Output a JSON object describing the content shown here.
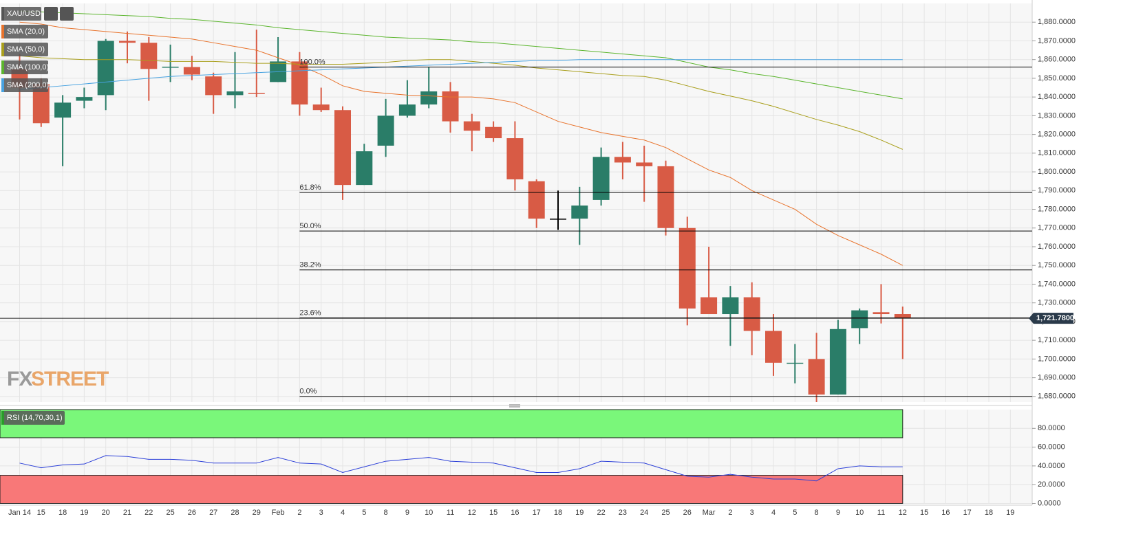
{
  "chart_data": [
    {
      "type": "candlestick",
      "title": "XAU/USD",
      "categories": [
        "Jan 14",
        "15",
        "18",
        "19",
        "20",
        "21",
        "22",
        "25",
        "26",
        "27",
        "28",
        "29",
        "Feb",
        "2",
        "3",
        "4",
        "5",
        "8",
        "9",
        "10",
        "11",
        "12",
        "15",
        "16",
        "17",
        "18",
        "19",
        "22",
        "23",
        "24",
        "25",
        "26",
        "Mar",
        "2",
        "3",
        "4",
        "5",
        "8",
        "9",
        "10",
        "11",
        "12",
        "15",
        "16",
        "17",
        "18",
        "19"
      ],
      "open": [
        1855,
        1847,
        1829,
        1838,
        1841,
        1870,
        1869,
        1856,
        1856,
        1851,
        1841,
        1842.2,
        1848,
        1859,
        1836,
        1833,
        1793,
        1814,
        1830,
        1836,
        1843,
        1827,
        1824,
        1818,
        1795,
        1775,
        1775,
        1785,
        1808,
        1805,
        1803,
        1770,
        1733,
        1724,
        1733,
        1715,
        1697.5,
        1700,
        1681,
        1716.5,
        1725,
        1724,
        null,
        null,
        null,
        null,
        null
      ],
      "high": [
        1863,
        1850,
        1841,
        1845,
        1871,
        1875,
        1872,
        1868,
        1862,
        1853,
        1864,
        1876,
        1872,
        1864,
        1845,
        1835,
        1815,
        1839,
        1849,
        1856,
        1848,
        1831,
        1827,
        1827,
        1796,
        1790,
        1792,
        1813,
        1816,
        1814,
        1806,
        1776,
        1760,
        1739,
        1741,
        1724,
        1708,
        1714,
        1721,
        1727,
        1740,
        1728,
        null,
        null,
        null,
        null,
        null
      ],
      "low": [
        1828,
        1824,
        1803,
        1834,
        1833,
        1858,
        1838,
        1848,
        1849,
        1831,
        1834,
        1840,
        1848,
        1830,
        1832,
        1785,
        1793,
        1808,
        1829,
        1834,
        1821,
        1811,
        1816,
        1790,
        1770,
        1769,
        1761,
        1782,
        1796,
        1784,
        1766,
        1718,
        1724,
        1707,
        1702,
        1691,
        1687,
        1677,
        1681,
        1708,
        1719,
        1700,
        null,
        null,
        null,
        null,
        null
      ],
      "close": [
        1845,
        1826,
        1837,
        1840,
        1870,
        1869,
        1855,
        1856.2,
        1852,
        1841,
        1843,
        1842,
        1859,
        1836,
        1833,
        1793,
        1811,
        1830,
        1836,
        1843,
        1827,
        1822,
        1818,
        1796,
        1775,
        1775,
        1782,
        1808,
        1805,
        1803,
        1770,
        1727,
        1724,
        1733,
        1715,
        1698,
        1698,
        1681,
        1716,
        1726,
        1724,
        1721.78,
        null,
        null,
        null,
        null,
        null
      ],
      "up_color": "#2a7d68",
      "down_color": "#d85b45",
      "flat_color": "#000000",
      "series": [
        {
          "name": "SMA (20,0)",
          "color": "#e8732c",
          "values": [
            1880,
            1879,
            1877,
            1876,
            1875,
            1874,
            1873,
            1872,
            1871,
            1869,
            1867,
            1865,
            1861,
            1857,
            1852,
            1846,
            1843,
            1842,
            1841,
            1840.6,
            1840,
            1840,
            1839,
            1837,
            1832,
            1827,
            1824,
            1821,
            1819,
            1817,
            1813,
            1807,
            1801,
            1797,
            1790,
            1785,
            1780,
            1772,
            1766,
            1761,
            1756,
            1750,
            null,
            null,
            null,
            null,
            null
          ]
        },
        {
          "name": "SMA (50,0)",
          "color": "#a99f1c",
          "values": [
            1862,
            1861,
            1860.5,
            1860,
            1860,
            1860,
            1859.5,
            1859,
            1859,
            1859,
            1858.5,
            1858,
            1858,
            1857.5,
            1857.5,
            1857.5,
            1858,
            1858.5,
            1859.5,
            1860,
            1860,
            1859,
            1858,
            1857,
            1855.5,
            1854.5,
            1853.5,
            1852.5,
            1851.5,
            1851,
            1849,
            1846,
            1843,
            1840.5,
            1838,
            1835,
            1831.5,
            1828,
            1825,
            1821.5,
            1817,
            1812,
            null,
            null,
            null,
            null,
            null
          ]
        },
        {
          "name": "SMA (100,0)",
          "color": "#5bb52d",
          "values": [
            1886,
            1885.5,
            1885,
            1884.5,
            1884,
            1883.5,
            1883,
            1882,
            1881.5,
            1880.5,
            1879.5,
            1878.5,
            1877,
            1876,
            1875,
            1874,
            1873,
            1872,
            1871.5,
            1871,
            1870.5,
            1869.5,
            1869,
            1868,
            1867,
            1866,
            1865,
            1864,
            1863,
            1862,
            1861,
            1858.5,
            1856,
            1854.5,
            1852.5,
            1851,
            1849,
            1847,
            1845,
            1843,
            1841,
            1839,
            null,
            null,
            null,
            null,
            null
          ]
        },
        {
          "name": "SMA (200,0)",
          "color": "#47a2e0",
          "values": [
            1844,
            1845,
            1846,
            1847,
            1848,
            1849,
            1850,
            1851,
            1851.5,
            1852,
            1852.5,
            1853,
            1853.5,
            1854,
            1854.5,
            1855,
            1855.5,
            1856,
            1856.5,
            1857,
            1857.5,
            1858,
            1858.5,
            1859,
            1859.5,
            1859.5,
            1860,
            1860,
            1860,
            1860,
            1860,
            1860,
            1860,
            1860,
            1860,
            1860,
            1860,
            1860,
            1860,
            1860,
            1860,
            1860,
            null,
            null,
            null,
            null,
            null
          ]
        }
      ],
      "levels": [
        {
          "label": "100.0%",
          "value": 1856
        },
        {
          "label": "61.8%",
          "value": 1789
        },
        {
          "label": "50.0%",
          "value": 1768.4
        },
        {
          "label": "38.2%",
          "value": 1747.6
        },
        {
          "label": "23.6%",
          "value": 1722
        },
        {
          "label": "0.0%",
          "value": 1680
        }
      ],
      "last_price": {
        "value": 1721.78,
        "label": "1,721.7800"
      },
      "watermark": {
        "left": "FX",
        "right": "STREET"
      },
      "ylim": [
        1677,
        1890
      ],
      "yticks": [
        {
          "value": 1680,
          "label": "1,680.0000"
        },
        {
          "value": 1690,
          "label": "1,690.0000"
        },
        {
          "value": 1700,
          "label": "1,700.0000"
        },
        {
          "value": 1710,
          "label": "1,710.0000"
        },
        {
          "value": 1720,
          "label": "1,720.0000"
        },
        {
          "value": 1730,
          "label": "1,730.0000"
        },
        {
          "value": 1740,
          "label": "1,740.0000"
        },
        {
          "value": 1750,
          "label": "1,750.0000"
        },
        {
          "value": 1760,
          "label": "1,760.0000"
        },
        {
          "value": 1770,
          "label": "1,770.0000"
        },
        {
          "value": 1780,
          "label": "1,780.0000"
        },
        {
          "value": 1790,
          "label": "1,790.0000"
        },
        {
          "value": 1800,
          "label": "1,800.0000"
        },
        {
          "value": 1810,
          "label": "1,810.0000"
        },
        {
          "value": 1820,
          "label": "1,820.0000"
        },
        {
          "value": 1830,
          "label": "1,830.0000"
        },
        {
          "value": 1840,
          "label": "1,840.0000"
        },
        {
          "value": 1850,
          "label": "1,850.0000"
        },
        {
          "value": 1860,
          "label": "1,860.0000"
        },
        {
          "value": 1870,
          "label": "1,870.0000"
        },
        {
          "value": 1880,
          "label": "1,880.0000"
        }
      ],
      "grid": true
    },
    {
      "type": "line",
      "series": [
        {
          "name": "RSI (14,70,30,1)",
          "color": "#2b3fd8",
          "values": [
            43,
            38,
            41,
            42,
            51,
            50,
            47,
            47,
            46,
            43,
            43,
            43,
            49,
            43,
            42,
            33,
            39,
            45,
            47,
            49,
            45,
            44,
            43,
            38,
            33,
            33,
            37,
            45,
            44,
            43,
            36,
            29,
            28,
            31,
            28,
            26,
            26,
            24,
            37,
            40,
            39,
            39,
            null,
            null,
            null,
            null,
            null
          ]
        }
      ],
      "zones": [
        {
          "from": 70,
          "to": 100,
          "color": "#7af77a"
        },
        {
          "from": 0,
          "to": 30,
          "color": "#f87878"
        }
      ],
      "ylim": [
        0,
        100
      ],
      "yticks": [
        {
          "value": 0,
          "label": "0.0000"
        },
        {
          "value": 20,
          "label": "20.0000"
        },
        {
          "value": 40,
          "label": "40.0000"
        },
        {
          "value": 60,
          "label": "60.0000"
        },
        {
          "value": 80,
          "label": "80.0000"
        }
      ],
      "grid": true
    }
  ]
}
